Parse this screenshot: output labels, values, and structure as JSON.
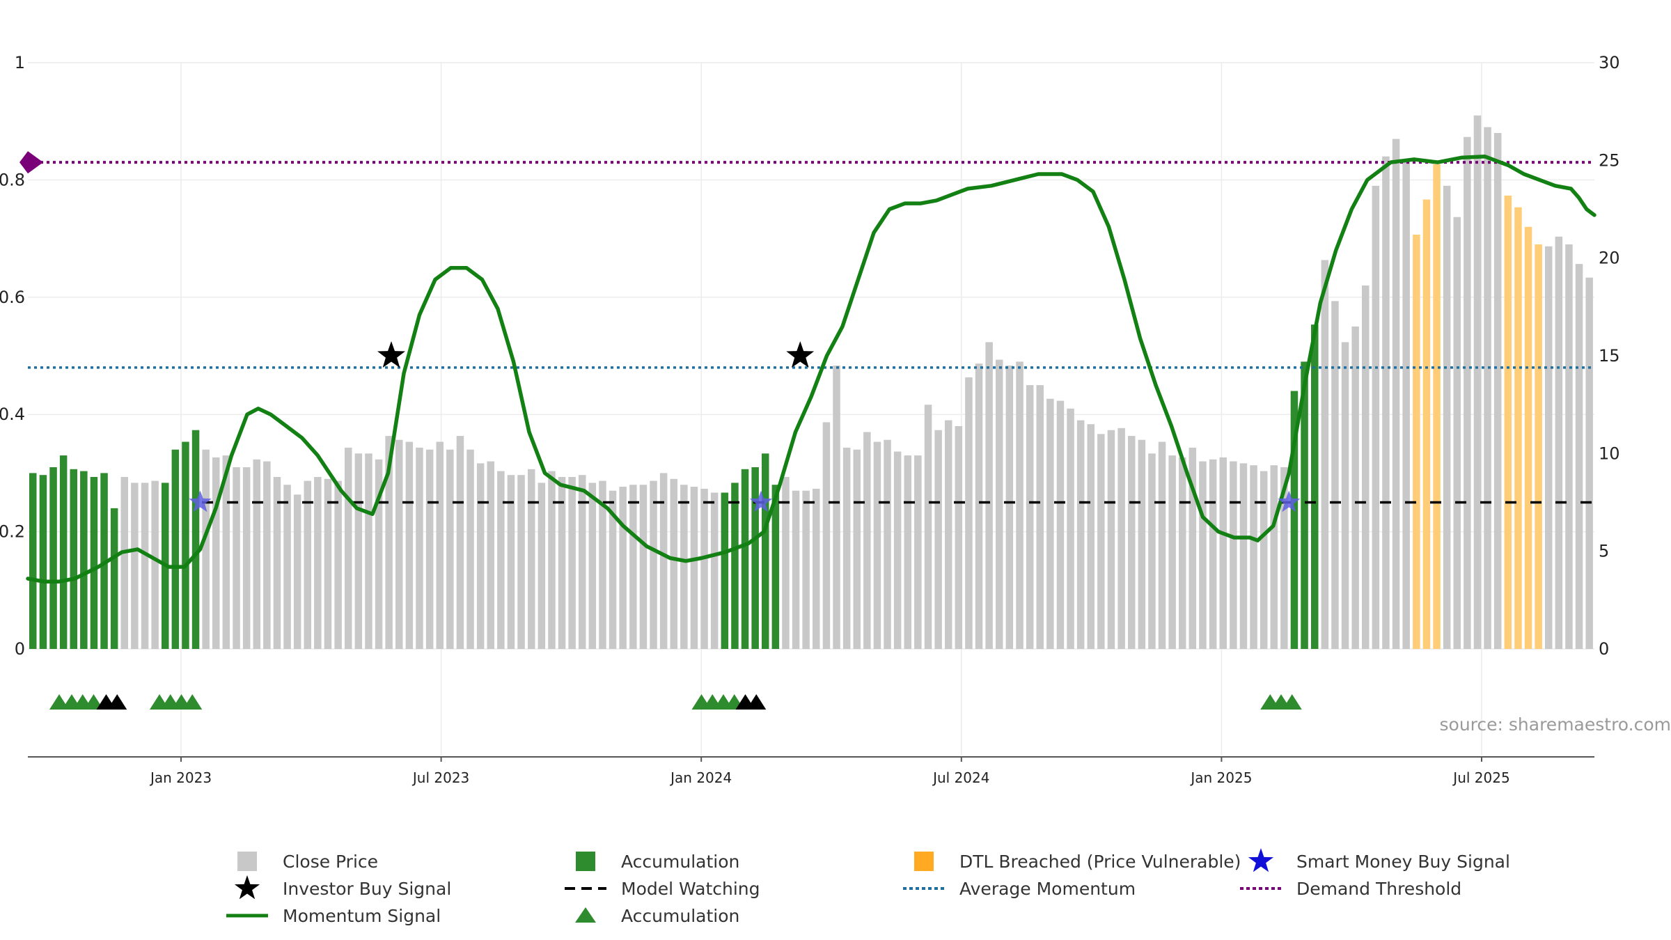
{
  "chart_data": {
    "type": "bar",
    "x_ticks": [
      "Jan 2023",
      "Jul 2023",
      "Jan 2024",
      "Jul 2024",
      "Jan 2025",
      "Jul 2025"
    ],
    "y_left_ticks": [
      "0",
      "0.2",
      "0.4",
      "0.6",
      "0.8",
      "1"
    ],
    "y_right_ticks": [
      "0",
      "5",
      "10",
      "15",
      "20",
      "25",
      "30"
    ],
    "ylim_left": [
      0,
      1
    ],
    "ylim_right": [
      0,
      30
    ],
    "grid": true,
    "source": "source: sharemaestro.com",
    "average_momentum": 0.48,
    "demand_threshold": 0.83,
    "model_watching": 0.25,
    "close_price": [
      9.0,
      8.9,
      9.3,
      9.9,
      9.2,
      9.1,
      8.8,
      9.0,
      7.2,
      8.8,
      8.5,
      8.5,
      8.6,
      8.5,
      10.2,
      10.6,
      11.2,
      10.2,
      9.8,
      9.9,
      9.3,
      9.3,
      9.7,
      9.6,
      8.8,
      8.4,
      7.9,
      8.6,
      8.8,
      8.7,
      8.6,
      10.3,
      10.0,
      10.0,
      9.7,
      10.9,
      10.7,
      10.6,
      10.3,
      10.2,
      10.6,
      10.2,
      10.9,
      10.2,
      9.5,
      9.6,
      9.1,
      8.9,
      8.9,
      9.2,
      8.5,
      9.1,
      8.8,
      8.8,
      8.9,
      8.5,
      8.6,
      8.1,
      8.3,
      8.4,
      8.4,
      8.6,
      9.0,
      8.7,
      8.4,
      8.3,
      8.2,
      8.0,
      8.0,
      8.5,
      9.2,
      9.3,
      10.0,
      8.4,
      8.8,
      8.1,
      8.1,
      8.2,
      11.6,
      14.5,
      10.3,
      10.2,
      11.1,
      10.6,
      10.7,
      10.1,
      9.9,
      9.9,
      12.5,
      11.2,
      11.7,
      11.4,
      13.9,
      14.6,
      15.7,
      14.8,
      14.5,
      14.7,
      13.5,
      13.5,
      12.8,
      12.7,
      12.3,
      11.7,
      11.5,
      11.0,
      11.2,
      11.3,
      10.9,
      10.7,
      10.0,
      10.6,
      9.9,
      9.8,
      10.3,
      9.6,
      9.7,
      9.8,
      9.6,
      9.5,
      9.4,
      9.1,
      9.4,
      9.3,
      13.2,
      14.7,
      16.6,
      19.9,
      17.8,
      15.7,
      16.5,
      18.6,
      23.7,
      25.2,
      26.1,
      25.0,
      21.2,
      23.0,
      24.8,
      23.7,
      22.1,
      26.2,
      27.3,
      26.7,
      26.4,
      23.2,
      22.6,
      21.6,
      20.7,
      20.6,
      21.1,
      20.7,
      19.7,
      19.0
    ],
    "bar_category": [
      "acc",
      "acc",
      "acc",
      "acc",
      "acc",
      "acc",
      "acc",
      "acc",
      "acc",
      "gray",
      "gray",
      "gray",
      "gray",
      "acc",
      "acc",
      "acc",
      "acc",
      "gray",
      "gray",
      "gray",
      "gray",
      "gray",
      "gray",
      "gray",
      "gray",
      "gray",
      "gray",
      "gray",
      "gray",
      "gray",
      "gray",
      "gray",
      "gray",
      "gray",
      "gray",
      "gray",
      "gray",
      "gray",
      "gray",
      "gray",
      "gray",
      "gray",
      "gray",
      "gray",
      "gray",
      "gray",
      "gray",
      "gray",
      "gray",
      "gray",
      "gray",
      "gray",
      "gray",
      "gray",
      "gray",
      "gray",
      "gray",
      "gray",
      "gray",
      "gray",
      "gray",
      "gray",
      "gray",
      "gray",
      "gray",
      "gray",
      "gray",
      "gray",
      "acc",
      "acc",
      "acc",
      "acc",
      "acc",
      "acc",
      "gray",
      "gray",
      "gray",
      "gray",
      "gray",
      "gray",
      "gray",
      "gray",
      "gray",
      "gray",
      "gray",
      "gray",
      "gray",
      "gray",
      "gray",
      "gray",
      "gray",
      "gray",
      "gray",
      "gray",
      "gray",
      "gray",
      "gray",
      "gray",
      "gray",
      "gray",
      "gray",
      "gray",
      "gray",
      "gray",
      "gray",
      "gray",
      "gray",
      "gray",
      "gray",
      "gray",
      "gray",
      "gray",
      "gray",
      "gray",
      "gray",
      "gray",
      "gray",
      "gray",
      "gray",
      "gray",
      "gray",
      "gray",
      "gray",
      "gray",
      "acc",
      "acc",
      "acc",
      "gray",
      "gray",
      "gray",
      "gray",
      "gray",
      "gray",
      "gray",
      "gray",
      "gray",
      "dtl",
      "dtl",
      "dtl",
      "gray",
      "gray",
      "gray",
      "gray",
      "gray",
      "gray",
      "dtl",
      "dtl",
      "dtl",
      "dtl",
      "gray",
      "gray",
      "gray",
      "gray",
      "gray",
      "gray",
      "gray",
      "gray",
      "gray"
    ],
    "momentum_signal": [
      [
        0,
        0.12
      ],
      [
        0.01,
        0.115
      ],
      [
        0.02,
        0.115
      ],
      [
        0.03,
        0.12
      ],
      [
        0.045,
        0.14
      ],
      [
        0.06,
        0.165
      ],
      [
        0.07,
        0.17
      ],
      [
        0.08,
        0.155
      ],
      [
        0.09,
        0.14
      ],
      [
        0.1,
        0.14
      ],
      [
        0.11,
        0.17
      ],
      [
        0.12,
        0.24
      ],
      [
        0.13,
        0.33
      ],
      [
        0.14,
        0.4
      ],
      [
        0.147,
        0.41
      ],
      [
        0.155,
        0.4
      ],
      [
        0.165,
        0.38
      ],
      [
        0.175,
        0.36
      ],
      [
        0.185,
        0.33
      ],
      [
        0.2,
        0.27
      ],
      [
        0.21,
        0.24
      ],
      [
        0.22,
        0.23
      ],
      [
        0.23,
        0.3
      ],
      [
        0.24,
        0.47
      ],
      [
        0.25,
        0.57
      ],
      [
        0.26,
        0.63
      ],
      [
        0.27,
        0.65
      ],
      [
        0.28,
        0.65
      ],
      [
        0.29,
        0.63
      ],
      [
        0.3,
        0.58
      ],
      [
        0.31,
        0.49
      ],
      [
        0.32,
        0.37
      ],
      [
        0.33,
        0.3
      ],
      [
        0.34,
        0.28
      ],
      [
        0.355,
        0.27
      ],
      [
        0.37,
        0.24
      ],
      [
        0.38,
        0.21
      ],
      [
        0.395,
        0.175
      ],
      [
        0.41,
        0.155
      ],
      [
        0.42,
        0.15
      ],
      [
        0.43,
        0.155
      ],
      [
        0.445,
        0.165
      ],
      [
        0.46,
        0.18
      ],
      [
        0.47,
        0.2
      ],
      [
        0.48,
        0.28
      ],
      [
        0.49,
        0.37
      ],
      [
        0.5,
        0.43
      ],
      [
        0.51,
        0.5
      ],
      [
        0.52,
        0.55
      ],
      [
        0.53,
        0.63
      ],
      [
        0.54,
        0.71
      ],
      [
        0.55,
        0.75
      ],
      [
        0.56,
        0.76
      ],
      [
        0.57,
        0.76
      ],
      [
        0.58,
        0.765
      ],
      [
        0.59,
        0.775
      ],
      [
        0.6,
        0.785
      ],
      [
        0.615,
        0.79
      ],
      [
        0.63,
        0.8
      ],
      [
        0.645,
        0.81
      ],
      [
        0.66,
        0.81
      ],
      [
        0.67,
        0.8
      ],
      [
        0.68,
        0.78
      ],
      [
        0.69,
        0.72
      ],
      [
        0.7,
        0.63
      ],
      [
        0.71,
        0.53
      ],
      [
        0.72,
        0.45
      ],
      [
        0.73,
        0.38
      ],
      [
        0.74,
        0.3
      ],
      [
        0.75,
        0.225
      ],
      [
        0.76,
        0.2
      ],
      [
        0.77,
        0.19
      ],
      [
        0.78,
        0.19
      ],
      [
        0.785,
        0.185
      ],
      [
        0.795,
        0.21
      ],
      [
        0.805,
        0.3
      ],
      [
        0.815,
        0.45
      ],
      [
        0.825,
        0.59
      ],
      [
        0.835,
        0.68
      ],
      [
        0.845,
        0.75
      ],
      [
        0.855,
        0.8
      ],
      [
        0.87,
        0.83
      ],
      [
        0.885,
        0.835
      ],
      [
        0.9,
        0.83
      ],
      [
        0.915,
        0.838
      ],
      [
        0.93,
        0.84
      ],
      [
        0.945,
        0.825
      ],
      [
        0.955,
        0.81
      ],
      [
        0.965,
        0.8
      ],
      [
        0.975,
        0.79
      ],
      [
        0.985,
        0.785
      ],
      [
        0.99,
        0.77
      ],
      [
        0.995,
        0.75
      ],
      [
        1,
        0.74
      ]
    ],
    "investor_buy_signals": [
      [
        0.232,
        0.5
      ],
      [
        0.493,
        0.5
      ]
    ],
    "smart_money_buy_signals": [
      [
        0.11,
        0.25
      ],
      [
        0.468,
        0.25
      ],
      [
        0.805,
        0.25
      ]
    ],
    "accumulation_triangles": [
      [
        0.02,
        "acc"
      ],
      [
        0.028,
        "acc"
      ],
      [
        0.035,
        "acc"
      ],
      [
        0.042,
        "acc"
      ],
      [
        0.05,
        "watch"
      ],
      [
        0.057,
        "watch"
      ],
      [
        0.084,
        "acc"
      ],
      [
        0.091,
        "acc"
      ],
      [
        0.098,
        "acc"
      ],
      [
        0.105,
        "acc"
      ],
      [
        0.43,
        "acc"
      ],
      [
        0.437,
        "acc"
      ],
      [
        0.444,
        "acc"
      ],
      [
        0.451,
        "acc"
      ],
      [
        0.458,
        "watch"
      ],
      [
        0.465,
        "watch"
      ],
      [
        0.793,
        "acc"
      ],
      [
        0.8,
        "acc"
      ],
      [
        0.807,
        "acc"
      ]
    ],
    "colors": {
      "gray": "#c8c8c8",
      "acc": "#2e8b2e",
      "dtl": "#ffcc77",
      "momentum": "#138013",
      "avg": "#1f6fa0",
      "demand": "#7a007a",
      "watch": "#000000",
      "smart": "#2020d0"
    },
    "legend": [
      {
        "label": "Close Price",
        "symbol": "gray-square"
      },
      {
        "label": "Accumulation",
        "symbol": "green-square"
      },
      {
        "label": "DTL Breached (Price Vulnerable)",
        "symbol": "orange-square"
      },
      {
        "label": "Smart Money Buy Signal",
        "symbol": "blue-star"
      },
      {
        "label": "Investor Buy Signal",
        "symbol": "black-star"
      },
      {
        "label": "Model Watching",
        "symbol": "black-dash"
      },
      {
        "label": "Average Momentum",
        "symbol": "blue-dot"
      },
      {
        "label": "Demand Threshold",
        "symbol": "purple-dot"
      },
      {
        "label": "Momentum Signal",
        "symbol": "green-line"
      },
      {
        "label": "Accumulation",
        "symbol": "green-triangle"
      }
    ]
  }
}
